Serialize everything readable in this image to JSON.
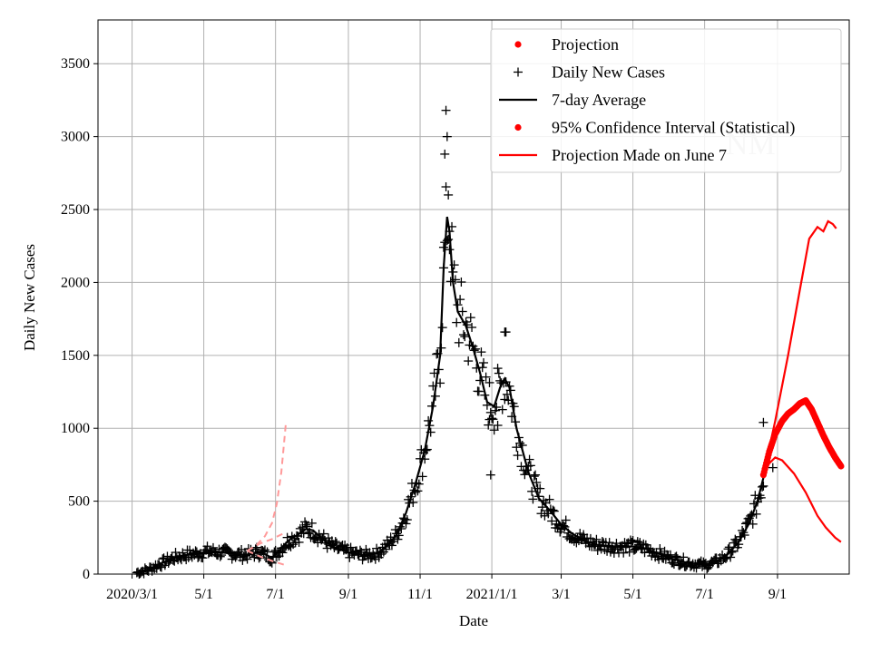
{
  "chart_data": {
    "type": "line",
    "xlabel": "Date",
    "ylabel": "Daily New Cases",
    "ylim": [
      0,
      3800
    ],
    "xlim": [
      "2020-02-01",
      "2021-11-01"
    ],
    "x_ticks": [
      {
        "date": "2020-03-01",
        "label": "2020/3/1"
      },
      {
        "date": "2020-05-01",
        "label": "5/1"
      },
      {
        "date": "2020-07-01",
        "label": "7/1"
      },
      {
        "date": "2020-09-01",
        "label": "9/1"
      },
      {
        "date": "2020-11-01",
        "label": "11/1"
      },
      {
        "date": "2021-01-01",
        "label": "2021/1/1"
      },
      {
        "date": "2021-03-01",
        "label": "3/1"
      },
      {
        "date": "2021-05-01",
        "label": "5/1"
      },
      {
        "date": "2021-07-01",
        "label": "7/1"
      },
      {
        "date": "2021-09-01",
        "label": "9/1"
      }
    ],
    "y_ticks": [
      0,
      500,
      1000,
      1500,
      2000,
      2500,
      3000,
      3500
    ],
    "grid": true,
    "legend_position": "top-right",
    "watermark": "NM",
    "legend": [
      {
        "label": "Projection",
        "color": "#ff0000",
        "marker": "dot"
      },
      {
        "label": "Daily New Cases",
        "color": "#000000",
        "marker": "plus"
      },
      {
        "label": "7-day Average",
        "color": "#000000",
        "marker": "line"
      },
      {
        "label": "95% Confidence Interval (Statistical)",
        "color": "#ff0000",
        "marker": "dot"
      },
      {
        "label": "Projection Made on June 7",
        "color": "#ff0000",
        "marker": "line"
      }
    ],
    "series": [
      {
        "name": "7-day Average",
        "color": "#000000",
        "style": "solid",
        "points": [
          [
            "2020-03-05",
            10
          ],
          [
            "2020-03-15",
            30
          ],
          [
            "2020-03-25",
            70
          ],
          [
            "2020-04-05",
            110
          ],
          [
            "2020-04-15",
            130
          ],
          [
            "2020-04-25",
            140
          ],
          [
            "2020-05-05",
            155
          ],
          [
            "2020-05-15",
            150
          ],
          [
            "2020-05-25",
            140
          ],
          [
            "2020-06-05",
            130
          ],
          [
            "2020-06-15",
            150
          ],
          [
            "2020-06-20",
            145
          ],
          [
            "2020-06-28",
            110
          ],
          [
            "2020-07-05",
            170
          ],
          [
            "2020-07-12",
            230
          ],
          [
            "2020-07-20",
            270
          ],
          [
            "2020-07-27",
            310
          ],
          [
            "2020-08-02",
            300
          ],
          [
            "2020-08-10",
            240
          ],
          [
            "2020-08-18",
            190
          ],
          [
            "2020-08-28",
            160
          ],
          [
            "2020-09-05",
            140
          ],
          [
            "2020-09-15",
            130
          ],
          [
            "2020-09-25",
            140
          ],
          [
            "2020-10-05",
            200
          ],
          [
            "2020-10-12",
            270
          ],
          [
            "2020-10-20",
            420
          ],
          [
            "2020-10-28",
            620
          ],
          [
            "2020-11-05",
            850
          ],
          [
            "2020-11-12",
            1150
          ],
          [
            "2020-11-18",
            1500
          ],
          [
            "2020-11-21",
            2100
          ],
          [
            "2020-11-24",
            2450
          ],
          [
            "2020-11-26",
            2350
          ],
          [
            "2020-11-29",
            2000
          ],
          [
            "2020-12-03",
            1800
          ],
          [
            "2020-12-10",
            1700
          ],
          [
            "2020-12-16",
            1550
          ],
          [
            "2020-12-22",
            1380
          ],
          [
            "2020-12-28",
            1180
          ],
          [
            "2021-01-03",
            1150
          ],
          [
            "2021-01-08",
            1280
          ],
          [
            "2021-01-12",
            1340
          ],
          [
            "2021-01-16",
            1280
          ],
          [
            "2021-01-22",
            1000
          ],
          [
            "2021-02-01",
            700
          ],
          [
            "2021-02-10",
            520
          ],
          [
            "2021-02-20",
            430
          ],
          [
            "2021-03-01",
            340
          ],
          [
            "2021-03-10",
            280
          ],
          [
            "2021-03-20",
            230
          ],
          [
            "2021-04-01",
            200
          ],
          [
            "2021-04-15",
            190
          ],
          [
            "2021-05-01",
            190
          ],
          [
            "2021-05-10",
            180
          ],
          [
            "2021-05-20",
            150
          ],
          [
            "2021-06-01",
            110
          ],
          [
            "2021-06-15",
            80
          ],
          [
            "2021-07-01",
            60
          ],
          [
            "2021-07-10",
            80
          ],
          [
            "2021-07-20",
            130
          ],
          [
            "2021-07-30",
            220
          ],
          [
            "2021-08-08",
            350
          ],
          [
            "2021-08-15",
            500
          ],
          [
            "2021-08-20",
            660
          ]
        ]
      },
      {
        "name": "Daily New Cases",
        "color": "#000000",
        "style": "plus",
        "peaks": [
          [
            "2020-11-23",
            3180
          ],
          [
            "2020-11-24",
            3000
          ],
          [
            "2020-11-22",
            2880
          ],
          [
            "2020-11-25",
            2600
          ],
          [
            "2020-11-26",
            2350
          ],
          [
            "2020-11-21",
            2100
          ],
          [
            "2021-01-12",
            1660
          ],
          [
            "2021-01-13",
            1660
          ],
          [
            "2020-12-30",
            1060
          ],
          [
            "2021-01-06",
            1020
          ],
          [
            "2021-08-20",
            1040
          ],
          [
            "2020-12-31",
            680
          ],
          [
            "2021-08-28",
            730
          ]
        ]
      },
      {
        "name": "Projection",
        "color": "#ff0000",
        "style": "dots",
        "points": [
          [
            "2021-08-20",
            680
          ],
          [
            "2021-08-25",
            840
          ],
          [
            "2021-08-30",
            960
          ],
          [
            "2021-09-05",
            1050
          ],
          [
            "2021-09-10",
            1100
          ],
          [
            "2021-09-15",
            1130
          ],
          [
            "2021-09-20",
            1170
          ],
          [
            "2021-09-25",
            1190
          ],
          [
            "2021-09-30",
            1130
          ],
          [
            "2021-10-05",
            1040
          ],
          [
            "2021-10-10",
            950
          ],
          [
            "2021-10-15",
            870
          ],
          [
            "2021-10-20",
            800
          ],
          [
            "2021-10-25",
            740
          ]
        ]
      },
      {
        "name": "95% Confidence Interval (Statistical)",
        "color": "#ff0000",
        "style": "solid",
        "upper": [
          [
            "2021-08-20",
            680
          ],
          [
            "2021-08-30",
            1050
          ],
          [
            "2021-09-10",
            1500
          ],
          [
            "2021-09-20",
            1950
          ],
          [
            "2021-09-28",
            2300
          ],
          [
            "2021-10-05",
            2380
          ],
          [
            "2021-10-10",
            2350
          ],
          [
            "2021-10-14",
            2420
          ],
          [
            "2021-10-18",
            2400
          ],
          [
            "2021-10-21",
            2370
          ]
        ],
        "lower": [
          [
            "2021-08-20",
            680
          ],
          [
            "2021-08-25",
            760
          ],
          [
            "2021-08-30",
            800
          ],
          [
            "2021-09-05",
            780
          ],
          [
            "2021-09-15",
            690
          ],
          [
            "2021-09-25",
            560
          ],
          [
            "2021-10-05",
            400
          ],
          [
            "2021-10-12",
            320
          ],
          [
            "2021-10-20",
            250
          ],
          [
            "2021-10-25",
            220
          ]
        ]
      },
      {
        "name": "Projection Made on June 7",
        "color": "#ff9999",
        "style": "dashed",
        "upper": [
          [
            "2020-06-07",
            160
          ],
          [
            "2020-06-15",
            200
          ],
          [
            "2020-06-22",
            260
          ],
          [
            "2020-06-28",
            350
          ],
          [
            "2020-07-02",
            480
          ],
          [
            "2020-07-06",
            700
          ],
          [
            "2020-07-10",
            1050
          ]
        ],
        "middle": [
          [
            "2020-06-07",
            160
          ],
          [
            "2020-06-18",
            210
          ],
          [
            "2020-06-28",
            240
          ],
          [
            "2020-07-08",
            280
          ]
        ],
        "lower": [
          [
            "2020-06-07",
            160
          ],
          [
            "2020-06-18",
            120
          ],
          [
            "2020-06-28",
            90
          ],
          [
            "2020-07-10",
            60
          ]
        ]
      }
    ]
  }
}
